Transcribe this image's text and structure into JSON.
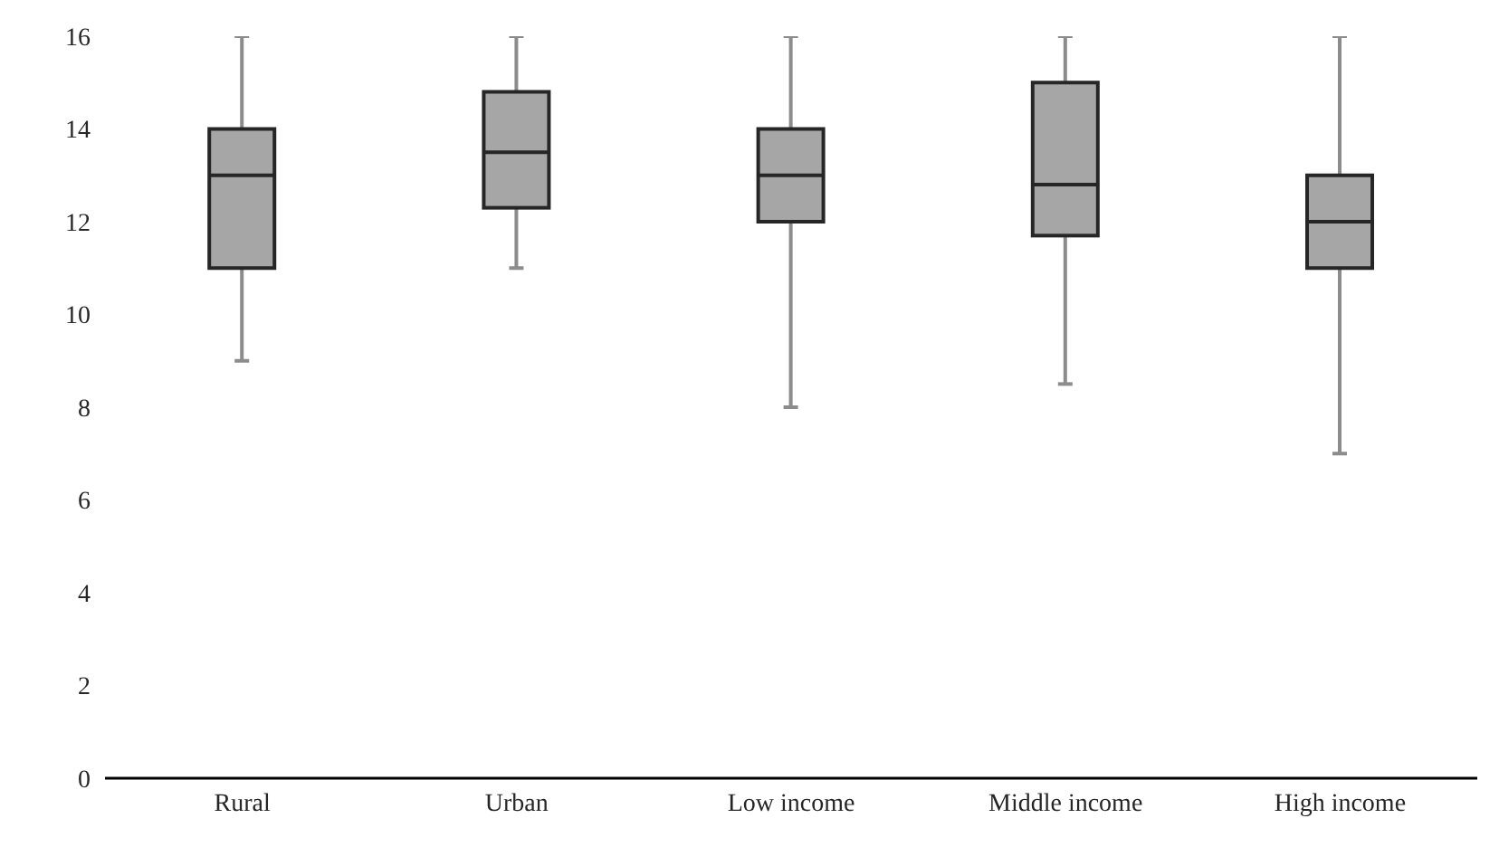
{
  "chart_data": {
    "type": "box",
    "categories": [
      "Rural",
      "Urban",
      "Low income",
      "Middle income",
      "High income"
    ],
    "boxes": [
      {
        "low": 9,
        "q1": 11,
        "median": 13,
        "q3": 14,
        "high": 16
      },
      {
        "low": 11,
        "q1": 12.3,
        "median": 13.5,
        "q3": 14.8,
        "high": 16
      },
      {
        "low": 8,
        "q1": 12,
        "median": 13,
        "q3": 14,
        "high": 16
      },
      {
        "low": 8.5,
        "q1": 11.7,
        "median": 12.8,
        "q3": 15,
        "high": 16
      },
      {
        "low": 7,
        "q1": 11,
        "median": 12,
        "q3": 13,
        "high": 16
      }
    ],
    "color": "#a6a6a6",
    "ylim": [
      0,
      16
    ],
    "yticks": [
      0,
      2,
      4,
      6,
      8,
      10,
      12,
      14,
      16
    ],
    "grid": false
  }
}
